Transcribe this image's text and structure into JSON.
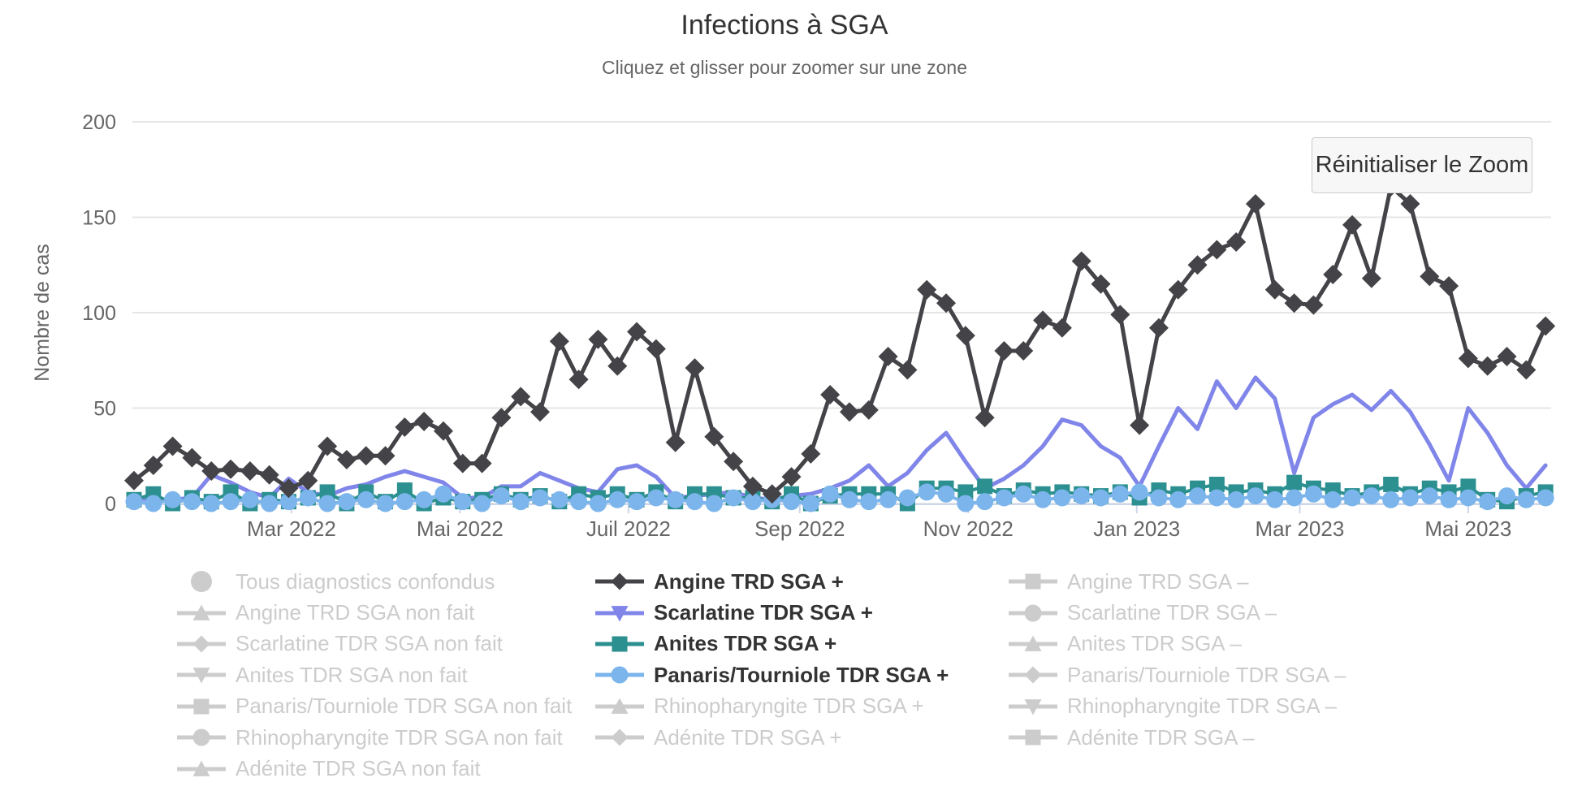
{
  "ui": {
    "reset_zoom_label": "Réinitialiser le Zoom"
  },
  "theme": {
    "background": "#ffffff",
    "grid_color": "#e6e6e6",
    "axis_line_color": "#ccd6eb",
    "tick_color": "#ccd6eb",
    "axis_label_color": "#666666",
    "title_color": "#333333",
    "subtitle_color": "#666666",
    "legend_active_color": "#333333",
    "legend_inactive_color": "#cccccc",
    "button_bg": "#f7f7f7",
    "button_border": "#cccccc",
    "button_text": "#333333"
  },
  "chart_data": {
    "type": "line",
    "title": "Infections à SGA",
    "subtitle": "Cliquez et glisser pour zoomer sur une zone",
    "ylabel": "Nombre de cas",
    "xlabel": "",
    "ylim": [
      0,
      200
    ],
    "yticks": [
      "0",
      "50",
      "100",
      "150",
      "200"
    ],
    "grid": true,
    "legend_position": "bottom",
    "x_start_date": "2022-01-03",
    "x_interval": "weekly",
    "n_points": 74,
    "xticks": [
      {
        "label": "Mar 2022",
        "day_offset": 57
      },
      {
        "label": "Mai 2022",
        "day_offset": 118
      },
      {
        "label": "Juil 2022",
        "day_offset": 179
      },
      {
        "label": "Sep 2022",
        "day_offset": 241
      },
      {
        "label": "Nov 2022",
        "day_offset": 302
      },
      {
        "label": "Jan 2023",
        "day_offset": 363
      },
      {
        "label": "Mar 2023",
        "day_offset": 422
      },
      {
        "label": "Mai 2023",
        "day_offset": 483
      }
    ],
    "series": [
      {
        "name": "Angine TRD SGA +",
        "color": "#434348",
        "marker": "diamond",
        "line_width": 5,
        "show_point_markers": true,
        "values": [
          12,
          20,
          30,
          24,
          17,
          18,
          17,
          15,
          8,
          12,
          30,
          23,
          25,
          25,
          40,
          43,
          38,
          21,
          21,
          45,
          56,
          48,
          85,
          65,
          86,
          72,
          90,
          81,
          32,
          71,
          35,
          22,
          9,
          5,
          14,
          26,
          57,
          48,
          49,
          77,
          70,
          112,
          105,
          88,
          45,
          80,
          80,
          96,
          92,
          127,
          115,
          99,
          41,
          92,
          112,
          125,
          133,
          137,
          157,
          112,
          105,
          104,
          120,
          146,
          118,
          166,
          157,
          119,
          114,
          76,
          72,
          77,
          70,
          93
        ]
      },
      {
        "name": "Scarlatine TDR SGA +",
        "color": "#8085e9",
        "marker": "triangle-down",
        "line_width": 5,
        "show_point_markers": false,
        "values": [
          3,
          2,
          2,
          3,
          15,
          11,
          6,
          3,
          13,
          6,
          4,
          8,
          10,
          14,
          17,
          14,
          11,
          3,
          3,
          9,
          9,
          16,
          12,
          8,
          6,
          18,
          20,
          14,
          3,
          4,
          5,
          6,
          3,
          2,
          4,
          5,
          8,
          12,
          20,
          9,
          16,
          28,
          37,
          22,
          8,
          13,
          20,
          30,
          44,
          41,
          30,
          24,
          9,
          30,
          50,
          39,
          64,
          50,
          66,
          55,
          16,
          45,
          52,
          57,
          49,
          59,
          48,
          31,
          12,
          50,
          37,
          20,
          8,
          20
        ]
      },
      {
        "name": "Anites TDR SGA +",
        "color": "#2b908f",
        "marker": "square",
        "line_width": 4,
        "show_point_markers": true,
        "values": [
          2,
          5,
          0,
          3,
          1,
          6,
          0,
          2,
          1,
          3,
          6,
          0,
          6,
          1,
          7,
          0,
          3,
          1,
          2,
          5,
          2,
          4,
          1,
          5,
          3,
          5,
          2,
          6,
          1,
          5,
          5,
          3,
          3,
          1,
          5,
          0,
          4,
          5,
          5,
          5,
          0,
          8,
          8,
          6,
          9,
          4,
          7,
          5,
          6,
          5,
          4,
          6,
          3,
          7,
          5,
          8,
          10,
          6,
          7,
          5,
          11,
          8,
          7,
          4,
          6,
          10,
          5,
          8,
          6,
          9,
          2,
          1,
          4,
          6
        ]
      },
      {
        "name": "Panaris/Tourniole TDR SGA +",
        "color": "#7cb5ec",
        "marker": "circle",
        "line_width": 4,
        "show_point_markers": true,
        "values": [
          1,
          0,
          2,
          1,
          0,
          1,
          2,
          0,
          1,
          3,
          0,
          1,
          2,
          0,
          1,
          2,
          5,
          1,
          0,
          4,
          1,
          3,
          2,
          1,
          0,
          2,
          1,
          3,
          2,
          1,
          0,
          3,
          1,
          2,
          1,
          0,
          5,
          2,
          1,
          2,
          3,
          6,
          5,
          0,
          1,
          3,
          5,
          2,
          3,
          4,
          3,
          5,
          6,
          3,
          2,
          4,
          3,
          2,
          4,
          2,
          3,
          5,
          2,
          3,
          4,
          2,
          3,
          4,
          2,
          3,
          1,
          4,
          2,
          3
        ]
      }
    ],
    "legend": {
      "columns": [
        [
          {
            "label": "Tous diagnostics confondus",
            "marker": "circle-large",
            "active": false
          },
          {
            "label": "Angine TRD SGA non fait",
            "marker": "triangle",
            "active": false
          },
          {
            "label": "Scarlatine TDR SGA non fait",
            "marker": "diamond",
            "active": false
          },
          {
            "label": "Anites TDR SGA non fait",
            "marker": "triangle-down",
            "active": false
          },
          {
            "label": "Panaris/Tourniole TDR SGA non fait",
            "marker": "square",
            "active": false
          },
          {
            "label": "Rhinopharyngite TDR SGA non fait",
            "marker": "circle",
            "active": false
          },
          {
            "label": "Adénite TDR SGA non fait",
            "marker": "triangle",
            "active": false
          }
        ],
        [
          {
            "label": "Angine TRD SGA +",
            "marker": "diamond",
            "active": true,
            "color": "#434348"
          },
          {
            "label": "Scarlatine TDR SGA +",
            "marker": "triangle-down",
            "active": true,
            "color": "#8085e9"
          },
          {
            "label": "Anites TDR SGA +",
            "marker": "square",
            "active": true,
            "color": "#2b908f"
          },
          {
            "label": "Panaris/Tourniole TDR SGA +",
            "marker": "circle",
            "active": true,
            "color": "#7cb5ec"
          },
          {
            "label": "Rhinopharyngite TDR SGA +",
            "marker": "triangle",
            "active": false
          },
          {
            "label": "Adénite TDR SGA +",
            "marker": "diamond",
            "active": false
          }
        ],
        [
          {
            "label": "Angine TRD SGA –",
            "marker": "square",
            "active": false
          },
          {
            "label": "Scarlatine TDR SGA –",
            "marker": "circle",
            "active": false
          },
          {
            "label": "Anites TDR SGA –",
            "marker": "triangle",
            "active": false
          },
          {
            "label": "Panaris/Tourniole TDR SGA –",
            "marker": "diamond",
            "active": false
          },
          {
            "label": "Rhinopharyngite TDR SGA –",
            "marker": "triangle-down",
            "active": false
          },
          {
            "label": "Adénite TDR SGA –",
            "marker": "square",
            "active": false
          }
        ]
      ]
    }
  }
}
